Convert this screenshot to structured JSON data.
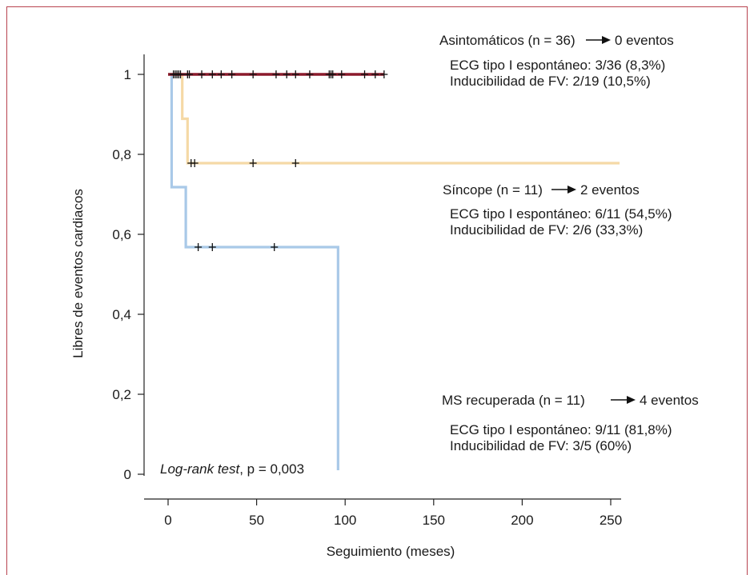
{
  "chart_data": {
    "type": "line",
    "xlabel": "Seguimiento (meses)",
    "ylabel": "Libres de eventos cardiacos",
    "xlim": [
      0,
      250
    ],
    "ylim": [
      0,
      1
    ],
    "x_ticks": [
      "0",
      "50",
      "100",
      "150",
      "200",
      "250"
    ],
    "y_ticks": [
      "0",
      "0,2",
      "0,4",
      "0,6",
      "0,8",
      "1"
    ],
    "grid": false,
    "annotation": {
      "italic": "Log-rank test",
      "rest": ", p = 0,003"
    },
    "series": [
      {
        "name": "Asintomáticos",
        "color": "#8b1a2b",
        "steps": [
          [
            0,
            1
          ],
          [
            122,
            1
          ]
        ],
        "censored": [
          [
            3,
            1
          ],
          [
            4,
            1
          ],
          [
            5,
            1
          ],
          [
            6,
            1
          ],
          [
            7,
            1
          ],
          [
            11,
            1
          ],
          [
            12,
            1
          ],
          [
            19,
            1
          ],
          [
            25,
            1
          ],
          [
            30,
            1
          ],
          [
            36,
            1
          ],
          [
            48,
            1
          ],
          [
            61,
            1
          ],
          [
            67,
            1
          ],
          [
            72,
            1
          ],
          [
            80,
            1
          ],
          [
            91,
            1
          ],
          [
            92,
            1
          ],
          [
            93,
            1
          ],
          [
            98,
            1
          ],
          [
            111,
            1
          ],
          [
            117,
            1
          ],
          [
            122,
            1
          ]
        ],
        "heading": "Asintomáticos (n = 36)",
        "events": "0 eventos",
        "ecg": "ECG tipo I espontáneo: 3/36 (8,3%)",
        "fv": "Inducibilidad de FV: 2/19 (10,5%)"
      },
      {
        "name": "Síncope",
        "color": "#f5d9a6",
        "steps": [
          [
            0,
            1
          ],
          [
            8,
            1
          ],
          [
            8,
            0.889
          ],
          [
            11,
            0.889
          ],
          [
            11,
            0.778
          ],
          [
            255,
            0.778
          ]
        ],
        "censored": [
          [
            13,
            0.778
          ],
          [
            15,
            0.778
          ],
          [
            48,
            0.778
          ],
          [
            72,
            0.778
          ]
        ],
        "heading": "Síncope (n = 11)",
        "events": "2 eventos",
        "ecg": "ECG tipo I espontáneo: 6/11 (54,5%)",
        "fv": "Inducibilidad de FV: 2/6 (33,3%)"
      },
      {
        "name": "MS recuperada",
        "color": "#a9c9e8",
        "steps": [
          [
            0,
            1
          ],
          [
            2,
            1
          ],
          [
            2,
            0.718
          ],
          [
            10,
            0.718
          ],
          [
            10,
            0.568
          ],
          [
            96,
            0.568
          ],
          [
            96,
            0.01
          ]
        ],
        "censored": [
          [
            17,
            0.568
          ],
          [
            25,
            0.568
          ],
          [
            60,
            0.568
          ]
        ],
        "heading": "MS recuperada (n = 11)",
        "events": "4 eventos",
        "ecg": "ECG tipo I espontáneo: 9/11 (81,8%)",
        "fv": "Inducibilidad de FV: 3/5 (60%)"
      }
    ]
  }
}
